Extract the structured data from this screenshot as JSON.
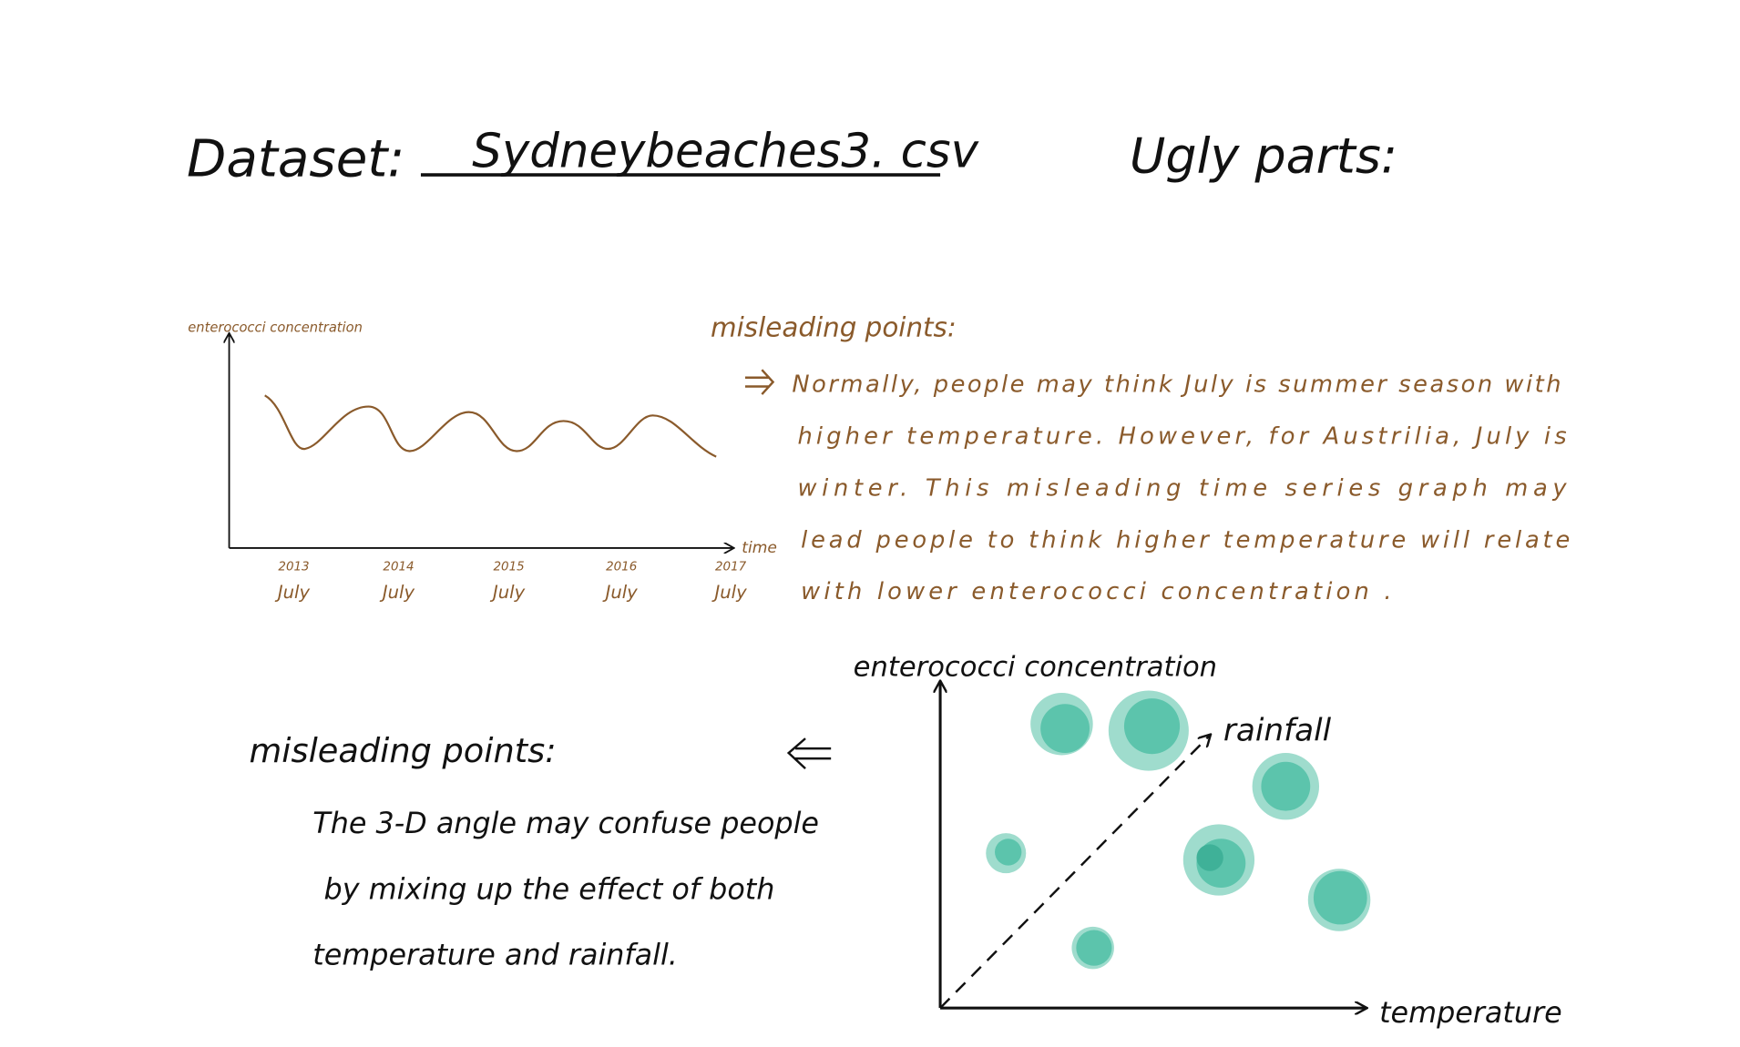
{
  "header": {
    "dataset_label": "Dataset:",
    "dataset_name": "Sydneybeaches3. csv",
    "ugly_parts": "Ugly parts:"
  },
  "line_sketch": {
    "y_label": "enterococci concentration",
    "x_label": "time",
    "ticks": [
      {
        "year": "2013",
        "month": "July"
      },
      {
        "year": "2014",
        "month": "July"
      },
      {
        "year": "2015",
        "month": "July"
      },
      {
        "year": "2016",
        "month": "July"
      },
      {
        "year": "2017",
        "month": "July"
      }
    ]
  },
  "note1": {
    "heading": "misleading points:",
    "lines": [
      "Normally, people may think July is summer season with",
      "higher temperature. However, for Austrilia, July is",
      "winter. This misleading time series graph may",
      "lead people to think higher temperature will relate",
      "with lower enterococci concentration ."
    ]
  },
  "bubble_sketch": {
    "y_label": "enterococci concentration",
    "depth_label": "rainfall",
    "x_label": "temperature"
  },
  "note2": {
    "heading": "misleading points:",
    "lines": [
      "The 3-D angle may confuse people",
      "by mixing up the effect of both",
      "temperature and rainfall."
    ]
  }
}
